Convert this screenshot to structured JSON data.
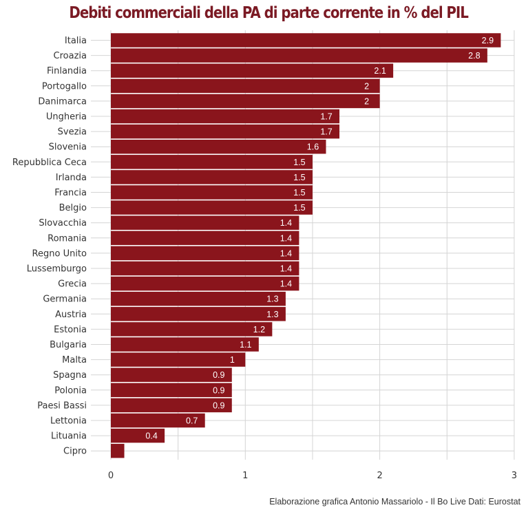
{
  "title": "Debiti commerciali della PA di parte corrente in % del PIL",
  "caption": "Elaborazione grafica Antonio Massariolo - Il Bo Live Dati: Eurostat",
  "colors": {
    "bar": "#8a151c",
    "grid": "#d4d4d4",
    "text": "#333333",
    "title": "#7b1a24"
  },
  "chart_data": {
    "type": "bar",
    "orientation": "horizontal",
    "title": "Debiti commerciali della PA di parte corrente in % del PIL",
    "xlabel": "",
    "ylabel": "",
    "xlim": [
      0,
      3
    ],
    "xticks": [
      0,
      1,
      2,
      3
    ],
    "grid": true,
    "categories": [
      "Italia",
      "Croazia",
      "Finlandia",
      "Portogallo",
      "Danimarca",
      "Ungheria",
      "Svezia",
      "Slovenia",
      "Repubblica Ceca",
      "Irlanda",
      "Francia",
      "Belgio",
      "Slovacchia",
      "Romania",
      "Regno Unito",
      "Lussemburgo",
      "Grecia",
      "Germania",
      "Austria",
      "Estonia",
      "Bulgaria",
      "Malta",
      "Spagna",
      "Polonia",
      "Paesi Bassi",
      "Lettonia",
      "Lituania",
      "Cipro"
    ],
    "values": [
      2.9,
      2.8,
      2.1,
      2,
      2,
      1.7,
      1.7,
      1.6,
      1.5,
      1.5,
      1.5,
      1.5,
      1.4,
      1.4,
      1.4,
      1.4,
      1.4,
      1.3,
      1.3,
      1.2,
      1.1,
      1,
      0.9,
      0.9,
      0.9,
      0.7,
      0.4,
      0.1
    ],
    "value_labels": [
      "2.9",
      "2.8",
      "2.1",
      "2",
      "2",
      "1.7",
      "1.7",
      "1.6",
      "1.5",
      "1.5",
      "1.5",
      "1.5",
      "1.4",
      "1.4",
      "1.4",
      "1.4",
      "1.4",
      "1.3",
      "1.3",
      "1.2",
      "1.1",
      "1",
      "0.9",
      "0.9",
      "0.9",
      "0.7",
      "0.4",
      ""
    ]
  }
}
